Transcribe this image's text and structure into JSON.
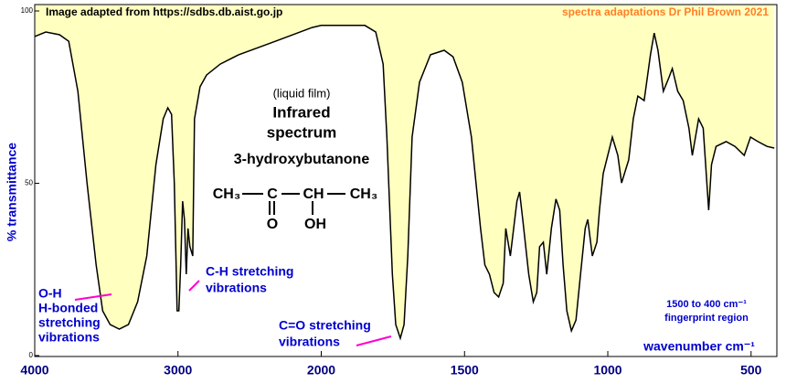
{
  "chart_data": {
    "type": "line",
    "source_note": "Image adapted from https://sdbs.db.aist.go.jp",
    "credit": "spectra adaptations Dr Phil Brown 2021",
    "ylabel": "% transmittance",
    "xlabel": "wavenumber  cm⁻¹",
    "sample": "(liquid film)",
    "title_lines": [
      "Infrared",
      "spectrum",
      "3-hydroxybutanone"
    ],
    "structure": {
      "main": [
        "CH₃",
        "C",
        "CH",
        "CH₃"
      ],
      "below": [
        "O",
        "OH"
      ]
    },
    "annotations": [
      {
        "lines": [
          "O-H",
          "H-bonded",
          "stretching",
          "vibrations"
        ]
      },
      {
        "lines": [
          "C-H stretching",
          "vibrations"
        ]
      },
      {
        "lines": [
          "C=O stretching",
          "vibrations"
        ]
      },
      {
        "lines": [
          "1500 to 400 cm⁻¹",
          "fingerprint region"
        ]
      }
    ],
    "xlim": [
      4000,
      410
    ],
    "xbreak": 2000,
    "xticks": [
      4000,
      3000,
      2000,
      1500,
      1000,
      500
    ],
    "ylim": [
      0,
      100
    ],
    "yticks": [
      0,
      50,
      100
    ],
    "x": [
      4000,
      3923,
      3827,
      3763,
      3699,
      3635,
      3571,
      3526,
      3474,
      3410,
      3346,
      3282,
      3218,
      3154,
      3103,
      3071,
      3045,
      3026,
      3006,
      2994,
      2981,
      2968,
      2955,
      2942,
      2930,
      2917,
      2897,
      2885,
      2846,
      2801,
      2705,
      2577,
      2321,
      2064,
      2000,
      1848,
      1810,
      1784,
      1771,
      1752,
      1740,
      1724,
      1711,
      1698,
      1683,
      1657,
      1619,
      1571,
      1540,
      1508,
      1476,
      1444,
      1429,
      1413,
      1397,
      1381,
      1365,
      1356,
      1340,
      1317,
      1308,
      1295,
      1276,
      1260,
      1248,
      1238,
      1225,
      1213,
      1197,
      1181,
      1168,
      1156,
      1143,
      1127,
      1111,
      1095,
      1079,
      1070,
      1054,
      1038,
      1029,
      1016,
      984,
      965,
      952,
      927,
      911,
      895,
      873,
      851,
      838,
      825,
      806,
      787,
      775,
      756,
      737,
      717,
      705,
      683,
      667,
      648,
      638,
      622,
      587,
      556,
      524,
      502,
      476,
      444,
      419
    ],
    "series": [
      {
        "name": "3-hydroxybutanone",
        "color": "#000000",
        "fill": "#ffffc0",
        "values": [
          92.6,
          93.9,
          93.1,
          91.2,
          76.7,
          50.1,
          26.3,
          13.0,
          9.0,
          7.7,
          9.0,
          15.6,
          28.9,
          55.4,
          68.7,
          71.9,
          70.0,
          50.1,
          13.0,
          13.0,
          26.3,
          44.8,
          39.5,
          23.6,
          36.9,
          31.6,
          28.9,
          68.7,
          78.0,
          81.4,
          84.6,
          87.3,
          91.2,
          95.2,
          95.8,
          95.8,
          93.9,
          84.6,
          63.4,
          23.6,
          9.0,
          5.0,
          9.0,
          28.9,
          63.4,
          79.3,
          87.3,
          88.6,
          86.7,
          79.3,
          63.4,
          36.9,
          26.3,
          23.6,
          18.3,
          17.0,
          21.0,
          36.9,
          28.9,
          44.8,
          47.5,
          38.2,
          23.6,
          15.6,
          18.3,
          31.6,
          32.9,
          23.6,
          36.9,
          45.4,
          42.2,
          26.3,
          13.0,
          7.2,
          10.3,
          23.6,
          36.9,
          39.5,
          28.9,
          32.9,
          42.2,
          52.8,
          63.4,
          58.1,
          50.1,
          56.8,
          68.7,
          75.3,
          74.0,
          87.3,
          93.6,
          88.6,
          76.7,
          80.6,
          83.3,
          76.7,
          74.0,
          66.0,
          58.1,
          68.7,
          66.0,
          42.2,
          55.4,
          60.7,
          62.1,
          60.7,
          58.1,
          63.4,
          62.1,
          60.7,
          60.2
        ]
      }
    ]
  }
}
